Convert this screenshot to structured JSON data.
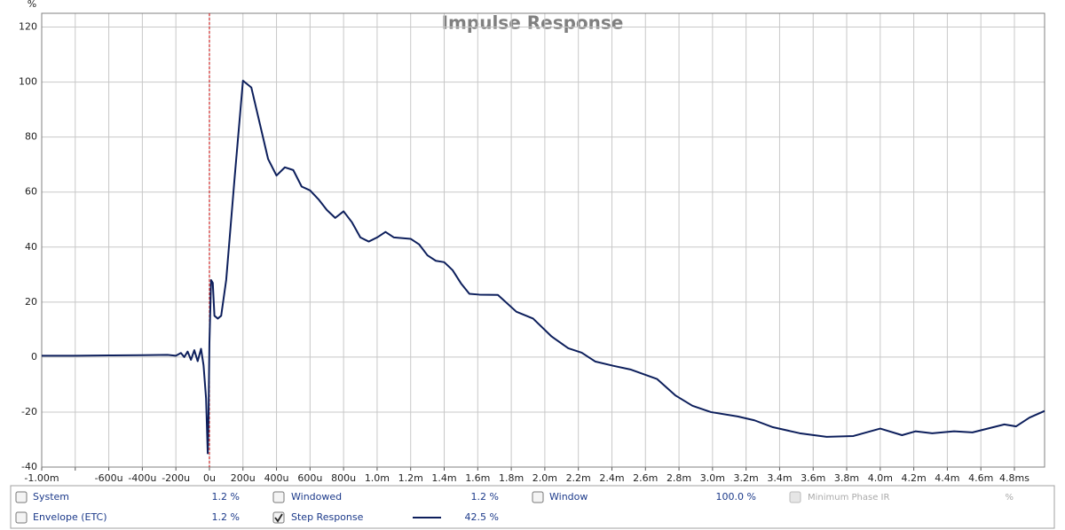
{
  "chart_data": {
    "type": "line",
    "title": "Impulse Response",
    "y_label": "%",
    "x": [
      -0.001,
      -0.0008,
      -0.0006,
      -0.0004,
      -0.00025,
      -0.0002,
      -0.00017,
      -0.00015,
      -0.00013,
      -0.00011,
      -9e-05,
      -7e-05,
      -5e-05,
      -3.5e-05,
      -2e-05,
      -1e-05,
      -5e-06,
      0,
      1e-05,
      2e-05,
      3e-05,
      5e-05,
      7e-05,
      0.0001,
      0.00015,
      0.0002,
      0.00025,
      0.0003,
      0.00035,
      0.0004,
      0.00045,
      0.0005,
      0.00055,
      0.0006,
      0.00065,
      0.0007,
      0.00075,
      0.0008,
      0.00085,
      0.0009,
      0.00095,
      0.001,
      0.00105,
      0.0011,
      0.0012,
      0.00125,
      0.0013,
      0.00135,
      0.0014,
      0.00145,
      0.0015,
      0.00155,
      0.00161,
      0.00172,
      0.00183,
      0.00193,
      0.00204,
      0.00214,
      0.00222,
      0.0023,
      0.00241,
      0.00251,
      0.00267,
      0.00278,
      0.00288,
      0.00299,
      0.00315,
      0.00325,
      0.00336,
      0.00352,
      0.00368,
      0.00384,
      0.004,
      0.00413,
      0.00421,
      0.00431,
      0.00444,
      0.00455,
      0.00474,
      0.00481,
      0.00489,
      0.00498
    ],
    "series": [
      {
        "name": "Step Response",
        "color": "#0d1f5c",
        "values": [
          0.5,
          0.5,
          0.6,
          0.7,
          0.8,
          0.5,
          1.5,
          0,
          2,
          -1,
          2.5,
          -1.5,
          3,
          -3,
          -15,
          -35,
          -20,
          5,
          28,
          27,
          15,
          14,
          15,
          28,
          65,
          100.5,
          98,
          85,
          72,
          66,
          69,
          68,
          62,
          60.6,
          57.4,
          53.5,
          50.6,
          53,
          49,
          43.5,
          42,
          43.5,
          45.5,
          43.5,
          43,
          41,
          37,
          35,
          34.5,
          31.6,
          26.8,
          23,
          22.7,
          22.6,
          16.5,
          14,
          7.5,
          3.2,
          1.6,
          -1.6,
          -3.2,
          -4.5,
          -8,
          -14,
          -17.7,
          -20,
          -21.6,
          -23,
          -25.5,
          -27.7,
          -29,
          -28.7,
          -26,
          -28.4,
          -27,
          -27.7,
          -27,
          -27.4,
          -24.5,
          -25.2,
          -22,
          -19.6
        ]
      }
    ],
    "xlim": [
      -0.001,
      0.00498
    ],
    "xticks": [
      {
        "value": -0.001,
        "label": "-1.00m"
      },
      {
        "value": -0.0008,
        "label": null
      },
      {
        "value": -0.0006,
        "label": "-600u"
      },
      {
        "value": -0.0004,
        "label": "-400u"
      },
      {
        "value": -0.0002,
        "label": "-200u"
      },
      {
        "value": 0,
        "label": "0u"
      },
      {
        "value": 0.0002,
        "label": "200u"
      },
      {
        "value": 0.0004,
        "label": "400u"
      },
      {
        "value": 0.0006,
        "label": "600u"
      },
      {
        "value": 0.0008,
        "label": "800u"
      },
      {
        "value": 0.001,
        "label": "1.0m"
      },
      {
        "value": 0.0012,
        "label": "1.2m"
      },
      {
        "value": 0.0014,
        "label": "1.4m"
      },
      {
        "value": 0.0016,
        "label": "1.6m"
      },
      {
        "value": 0.0018,
        "label": "1.8m"
      },
      {
        "value": 0.002,
        "label": "2.0m"
      },
      {
        "value": 0.0022,
        "label": "2.2m"
      },
      {
        "value": 0.0024,
        "label": "2.4m"
      },
      {
        "value": 0.0026,
        "label": "2.6m"
      },
      {
        "value": 0.0028,
        "label": "2.8m"
      },
      {
        "value": 0.003,
        "label": "3.0m"
      },
      {
        "value": 0.0032,
        "label": "3.2m"
      },
      {
        "value": 0.0034,
        "label": "3.4m"
      },
      {
        "value": 0.0036,
        "label": "3.6m"
      },
      {
        "value": 0.0038,
        "label": "3.8m"
      },
      {
        "value": 0.004,
        "label": "4.0m"
      },
      {
        "value": 0.0042,
        "label": "4.2m"
      },
      {
        "value": 0.0044,
        "label": "4.4m"
      },
      {
        "value": 0.0046,
        "label": "4.6m"
      },
      {
        "value": 0.0048,
        "label": "4.8ms"
      }
    ],
    "ylim": [
      -40,
      125
    ],
    "yticks": [
      -40,
      -20,
      0,
      20,
      40,
      60,
      80,
      100,
      120
    ],
    "grid": true,
    "reference_line": {
      "x": 0,
      "color": "#cc0000"
    }
  },
  "panel": {
    "items": [
      {
        "label": "System",
        "value": "1.2 %",
        "checked": false,
        "enabled": true
      },
      {
        "label": "Windowed",
        "value": "1.2 %",
        "checked": false,
        "enabled": true
      },
      {
        "label": "Window",
        "value": "100.0 %",
        "checked": false,
        "enabled": true
      },
      {
        "label": "Minimum Phase IR",
        "value": "%",
        "checked": false,
        "enabled": false
      },
      {
        "label": "Envelope (ETC)",
        "value": "1.2 %",
        "checked": false,
        "enabled": true
      },
      {
        "label": "Step Response",
        "value": "42.5 %",
        "checked": true,
        "enabled": true,
        "series": 0
      }
    ]
  }
}
